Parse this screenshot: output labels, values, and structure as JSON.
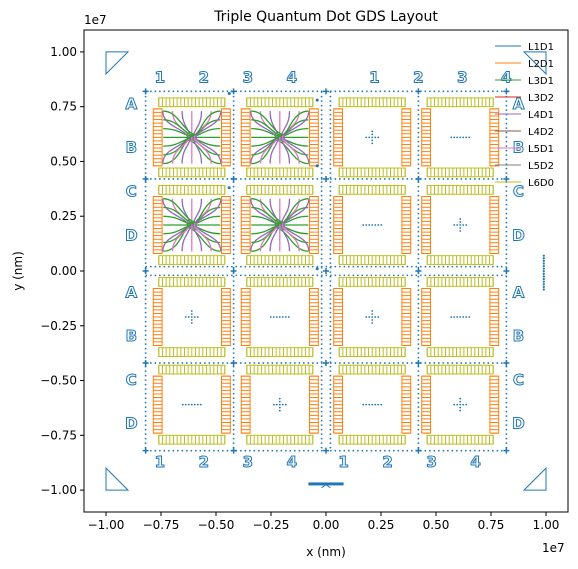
{
  "chart_data": {
    "type": "line",
    "title": "Triple Quantum Dot GDS Layout",
    "xlabel": "x (nm)",
    "ylabel": "y (nm)",
    "x_offset_label": "1e7",
    "y_offset_label": "1e7",
    "xlim": [
      -1.1,
      1.1
    ],
    "ylim": [
      -1.1,
      1.1
    ],
    "x_ticks": [
      -1.0,
      -0.75,
      -0.5,
      -0.25,
      0.0,
      0.25,
      0.5,
      0.75,
      1.0
    ],
    "x_tick_labels": [
      "−1.00",
      "−0.75",
      "−0.50",
      "−0.25",
      "0.00",
      "0.25",
      "0.50",
      "0.75",
      "1.00"
    ],
    "y_ticks": [
      -1.0,
      -0.75,
      -0.5,
      -0.25,
      0.0,
      0.25,
      0.5,
      0.75,
      1.0
    ],
    "y_tick_labels": [
      "−1.00",
      "−0.75",
      "−0.50",
      "−0.25",
      "0.00",
      "0.25",
      "0.50",
      "0.75",
      "1.00"
    ],
    "grid": false,
    "legend_position": "top-right",
    "series": [
      {
        "name": "L1D1",
        "color": "#1f77b4"
      },
      {
        "name": "L2D1",
        "color": "#ff7f0e"
      },
      {
        "name": "L3D1",
        "color": "#2ca02c"
      },
      {
        "name": "L3D2",
        "color": "#d62728"
      },
      {
        "name": "L4D1",
        "color": "#9467bd"
      },
      {
        "name": "L4D2",
        "color": "#8c564b"
      },
      {
        "name": "L5D1",
        "color": "#e377c2"
      },
      {
        "name": "L5D2",
        "color": "#7f7f7f"
      },
      {
        "name": "L6D0",
        "color": "#bcbd22"
      }
    ],
    "column_labels_top": [
      "1",
      "2",
      "3",
      "4",
      "1",
      "2",
      "3",
      "4"
    ],
    "column_labels_bottom": [
      "1",
      "2",
      "3",
      "4",
      "1",
      "2",
      "3",
      "4"
    ],
    "row_labels": [
      "A",
      "B",
      "C",
      "D",
      "A",
      "B",
      "C",
      "D"
    ]
  }
}
